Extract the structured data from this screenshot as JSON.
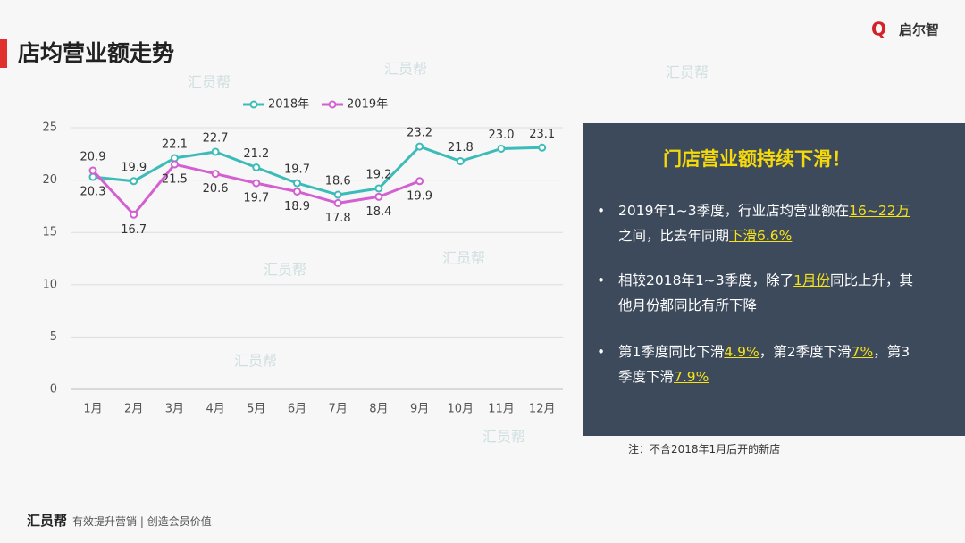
{
  "title": "店均营业额走势",
  "logo": "启尔智",
  "watermark": "汇员帮",
  "chart_data": {
    "type": "line",
    "categories": [
      "1月",
      "2月",
      "3月",
      "4月",
      "5月",
      "6月",
      "7月",
      "8月",
      "9月",
      "10月",
      "11月",
      "12月"
    ],
    "series": [
      {
        "name": "2018年",
        "color": "#3cbcb8",
        "values": [
          20.3,
          19.9,
          22.1,
          22.7,
          21.2,
          19.7,
          18.6,
          19.2,
          23.2,
          21.8,
          23.0,
          23.1
        ],
        "value_labels": [
          "20.3",
          "19.9",
          "22.1",
          "22.7",
          "21.2",
          "19.7",
          "18.6",
          "19.2",
          "23.2",
          "21.8",
          "23.0",
          "23.1"
        ]
      },
      {
        "name": "2019年",
        "color": "#d35fd0",
        "values": [
          20.9,
          16.7,
          21.5,
          20.6,
          19.7,
          18.9,
          17.8,
          18.4,
          19.9,
          null,
          null,
          null
        ]
      }
    ],
    "ylim": [
      0,
      25
    ],
    "yticks": [
      0,
      5,
      10,
      15,
      20,
      25
    ],
    "grid": true,
    "legend": "top"
  },
  "panel": {
    "title": "门店营业额持续下滑！",
    "bullets": [
      [
        {
          "text": "2019年1~3季度，行业店均营业额在"
        },
        {
          "text": "16~22万",
          "emphasis": true
        },
        {
          "text": "之间，比去年同期"
        },
        {
          "text": "下滑6.6%",
          "emphasis": true
        }
      ],
      [
        {
          "text": "相较2018年1~3季度，除了"
        },
        {
          "text": "1月份",
          "emphasis": true
        },
        {
          "text": "同比上升，其他月份都同比有所下降"
        }
      ],
      [
        {
          "text": "第1季度同比下滑"
        },
        {
          "text": "4.9%",
          "emphasis": true
        },
        {
          "text": "，第2季度下滑"
        },
        {
          "text": "7%",
          "emphasis": true
        },
        {
          "text": "，第3季度下滑"
        },
        {
          "text": "7.9%",
          "emphasis": true
        }
      ]
    ]
  },
  "note": "注：不含2018年1月后开的新店",
  "footer": {
    "brand": "汇员帮",
    "slogan": "有效提升营销 | 创造会员价值"
  }
}
